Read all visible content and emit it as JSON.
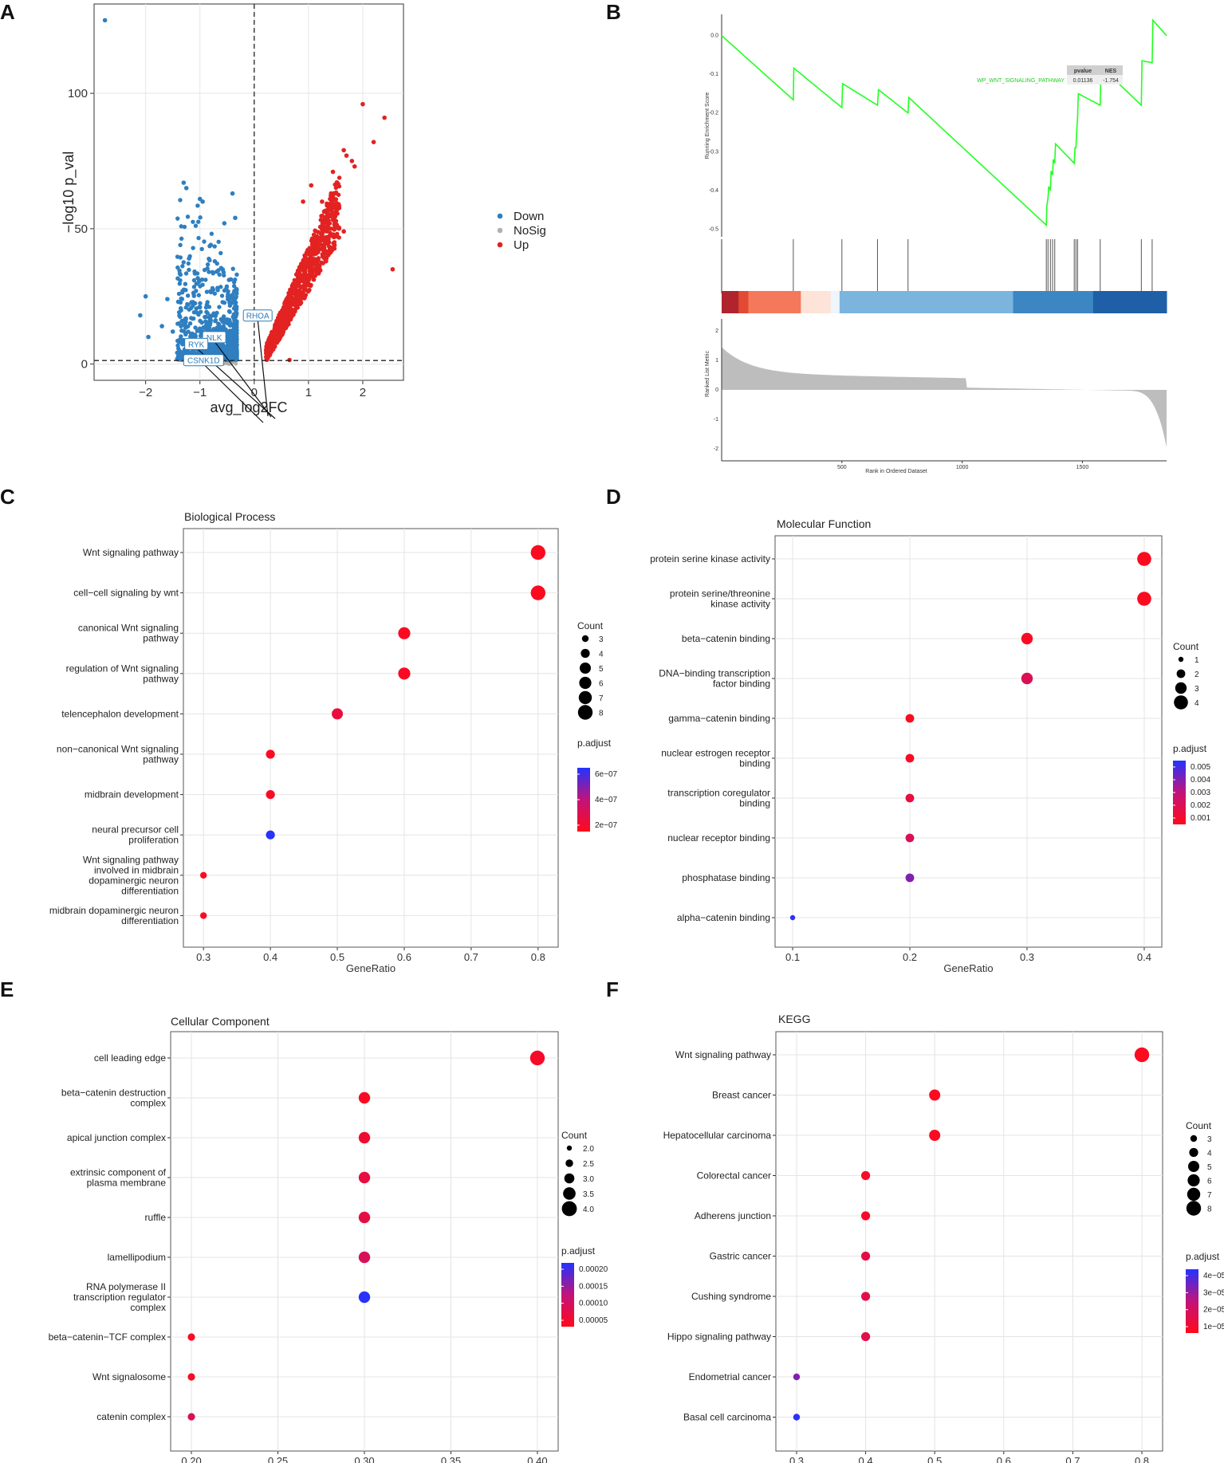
{
  "panels": {
    "A": {
      "letter": "A",
      "chart_data": {
        "type": "scatter",
        "title": "",
        "xlabel": "avg_log2FC",
        "ylabel": "−log10 p_val",
        "xlim": [
          -2.95,
          2.75
        ],
        "ylim": [
          -6,
          133
        ],
        "xticks": [
          -2,
          -1,
          0,
          1,
          2
        ],
        "yticks": [
          0,
          50,
          100
        ],
        "legend": [
          {
            "label": "Down",
            "color": "#2f7fc0"
          },
          {
            "label": "NoSig",
            "color": "#b0b0b0"
          },
          {
            "label": "Up",
            "color": "#e32222"
          }
        ],
        "thresholds": {
          "x": 0,
          "y": 1.3
        },
        "highlight_genes": [
          "RHOA",
          "NLK",
          "RYK",
          "CSNK1D"
        ],
        "outliers_down": [
          [
            -2.75,
            127
          ],
          [
            -1.3,
            67
          ],
          [
            -1.25,
            65
          ],
          [
            -1.0,
            61
          ],
          [
            -0.95,
            60
          ],
          [
            -0.4,
            63
          ],
          [
            -2.0,
            25
          ],
          [
            -2.1,
            18
          ],
          [
            -1.95,
            10
          ],
          [
            -1.6,
            24
          ],
          [
            -1.7,
            14
          ],
          [
            -1.5,
            12
          ],
          [
            -1.2,
            39
          ],
          [
            -1.4,
            23
          ],
          [
            -1.0,
            21
          ],
          [
            -0.8,
            44
          ],
          [
            -0.55,
            52
          ],
          [
            -0.35,
            54
          ]
        ],
        "outliers_up": [
          [
            2.0,
            96
          ],
          [
            2.4,
            91
          ],
          [
            2.2,
            82
          ],
          [
            1.65,
            79
          ],
          [
            1.7,
            77
          ],
          [
            1.85,
            73
          ],
          [
            1.8,
            75
          ],
          [
            2.55,
            35
          ],
          [
            1.65,
            49
          ],
          [
            1.25,
            60
          ],
          [
            0.9,
            60
          ],
          [
            1.05,
            66
          ],
          [
            1.45,
            71
          ],
          [
            0.65,
            1.5
          ]
        ]
      }
    },
    "B": {
      "letter": "B",
      "chart_data": {
        "type": "line",
        "title": "",
        "xlabel": "Rank in Ordered Dataset",
        "ylabel_top": "Running Enrichment Score",
        "ylabel_bottom": "Ranked List Metric",
        "pathway": "WP_WNT_SIGNALING_PATHWAY",
        "pvalue_label": "pvalue",
        "nes_label": "NES",
        "pvalue": "0.01136",
        "nes": "-1.754",
        "es_yticks": [
          "0.0",
          "-0.1",
          "-0.2",
          "-0.3",
          "-0.4",
          "-0.5"
        ],
        "metric_yticks": [
          "2",
          "1",
          "0",
          "-1",
          "-2"
        ],
        "xticks": [
          "500",
          "1000",
          "1500"
        ],
        "x_max": 1850,
        "hit_ranks": [
          298,
          500,
          648,
          775,
          1350,
          1357,
          1367,
          1376,
          1385,
          1466,
          1473,
          1480,
          1574,
          1745,
          1790
        ],
        "es_points": [
          [
            0,
            0.0
          ],
          [
            298,
            -0.166
          ],
          [
            300,
            -0.084
          ],
          [
            500,
            -0.186
          ],
          [
            503,
            -0.124
          ],
          [
            648,
            -0.18
          ],
          [
            652,
            -0.14
          ],
          [
            775,
            -0.2
          ],
          [
            778,
            -0.16
          ],
          [
            1350,
            -0.49
          ],
          [
            1352,
            -0.44
          ],
          [
            1357,
            -0.42
          ],
          [
            1360,
            -0.39
          ],
          [
            1367,
            -0.4
          ],
          [
            1370,
            -0.35
          ],
          [
            1376,
            -0.36
          ],
          [
            1379,
            -0.32
          ],
          [
            1385,
            -0.33
          ],
          [
            1388,
            -0.28
          ],
          [
            1466,
            -0.33
          ],
          [
            1469,
            -0.29
          ],
          [
            1473,
            -0.29
          ],
          [
            1476,
            -0.25
          ],
          [
            1480,
            -0.21
          ],
          [
            1483,
            -0.15
          ],
          [
            1574,
            -0.18
          ],
          [
            1577,
            -0.08
          ],
          [
            1745,
            -0.18
          ],
          [
            1748,
            -0.065
          ],
          [
            1790,
            -0.07
          ],
          [
            1793,
            0.04
          ],
          [
            1850,
            0.0
          ]
        ]
      }
    },
    "C": {
      "letter": "C",
      "chart_data": {
        "type": "scatter",
        "title": "Biological Process",
        "xlabel": "GeneRatio",
        "xlim": [
          0.27,
          0.83
        ],
        "xticks": [
          "0.3",
          "0.4",
          "0.5",
          "0.6",
          "0.7",
          "0.8"
        ],
        "categories": [
          "Wnt signaling pathway",
          "cell−cell signaling by wnt",
          "canonical Wnt signaling\npathway",
          "regulation of Wnt signaling\npathway",
          "telencephalon development",
          "non−canonical Wnt signaling\npathway",
          "midbrain development",
          "neural precursor cell\nproliferation",
          "Wnt signaling pathway\ninvolved in midbrain\ndopaminergic neuron\ndifferentiation",
          "midbrain dopaminergic neuron\ndifferentiation"
        ],
        "gene_ratio": [
          0.8,
          0.8,
          0.6,
          0.6,
          0.5,
          0.4,
          0.4,
          0.4,
          0.3,
          0.3
        ],
        "count": [
          8,
          8,
          6,
          6,
          5,
          4,
          4,
          4,
          3,
          3
        ],
        "p_adjust_frac": [
          0.03,
          0.03,
          0.03,
          0.05,
          0.18,
          0.05,
          0.05,
          0.98,
          0.03,
          0.03
        ],
        "size_legend_title": "Count",
        "size_legend": [
          "3",
          "4",
          "5",
          "6",
          "7",
          "8"
        ],
        "color_legend_title": "p.adjust",
        "color_legend": [
          "6e−07",
          "4e−07",
          "2e−07"
        ]
      }
    },
    "D": {
      "letter": "D",
      "chart_data": {
        "type": "scatter",
        "title": "Molecular Function",
        "xlabel": "GeneRatio",
        "xlim": [
          0.085,
          0.415
        ],
        "xticks": [
          "0.1",
          "0.2",
          "0.3",
          "0.4"
        ],
        "categories": [
          "protein serine kinase activity",
          "protein serine/threonine\nkinase activity",
          "beta−catenin binding",
          "DNA−binding transcription\nfactor binding",
          "gamma−catenin binding",
          "nuclear estrogen receptor\nbinding",
          "transcription coregulator\nbinding",
          "nuclear receptor binding",
          "phosphatase binding",
          "alpha−catenin binding"
        ],
        "gene_ratio": [
          0.4,
          0.4,
          0.3,
          0.3,
          0.2,
          0.2,
          0.2,
          0.2,
          0.2,
          0.1
        ],
        "count": [
          4,
          4,
          3,
          3,
          2,
          2,
          2,
          2,
          2,
          1
        ],
        "p_adjust_frac": [
          0.03,
          0.03,
          0.05,
          0.3,
          0.03,
          0.05,
          0.2,
          0.32,
          0.7,
          0.97
        ],
        "size_legend_title": "Count",
        "size_legend": [
          "1",
          "2",
          "3",
          "4"
        ],
        "color_legend_title": "p.adjust",
        "color_legend": [
          "0.005",
          "0.004",
          "0.003",
          "0.002",
          "0.001"
        ]
      }
    },
    "E": {
      "letter": "E",
      "chart_data": {
        "type": "scatter",
        "title": "Cellular Component",
        "xlabel": "GeneRatio",
        "xlim": [
          0.188,
          0.412
        ],
        "xticks": [
          "0.20",
          "0.25",
          "0.30",
          "0.35",
          "0.40"
        ],
        "categories": [
          "cell leading edge",
          "beta−catenin destruction\ncomplex",
          "apical junction complex",
          "extrinsic component of\nplasma membrane",
          "ruffle",
          "lamellipodium",
          "RNA polymerase II\ntranscription regulator\ncomplex",
          "beta−catenin−TCF complex",
          "Wnt signalosome",
          "catenin complex"
        ],
        "gene_ratio": [
          0.4,
          0.3,
          0.3,
          0.3,
          0.3,
          0.3,
          0.3,
          0.2,
          0.2,
          0.2
        ],
        "count": [
          4,
          3,
          3,
          3,
          3,
          3,
          3,
          2,
          2,
          2
        ],
        "p_adjust_frac": [
          0.08,
          0.04,
          0.12,
          0.2,
          0.22,
          0.32,
          0.98,
          0.04,
          0.06,
          0.3
        ],
        "size_legend_title": "Count",
        "size_legend": [
          "2.0",
          "2.5",
          "3.0",
          "3.5",
          "4.0"
        ],
        "color_legend_title": "p.adjust",
        "color_legend": [
          "0.00020",
          "0.00015",
          "0.00010",
          "0.00005"
        ]
      }
    },
    "F": {
      "letter": "F",
      "chart_data": {
        "type": "scatter",
        "title": "KEGG",
        "xlabel": "GeneRatio",
        "xlim": [
          0.27,
          0.83
        ],
        "xticks": [
          "0.3",
          "0.4",
          "0.5",
          "0.6",
          "0.7",
          "0.8"
        ],
        "categories": [
          "Wnt signaling pathway",
          "Breast cancer",
          "Hepatocellular carcinoma",
          "Colorectal cancer",
          "Adherens junction",
          "Gastric cancer",
          "Cushing syndrome",
          "Hippo signaling pathway",
          "Endometrial cancer",
          "Basal cell carcinoma"
        ],
        "gene_ratio": [
          0.8,
          0.5,
          0.5,
          0.4,
          0.4,
          0.4,
          0.4,
          0.4,
          0.3,
          0.3
        ],
        "count": [
          8,
          5,
          5,
          4,
          4,
          4,
          4,
          4,
          3,
          3
        ],
        "p_adjust_frac": [
          0.03,
          0.04,
          0.04,
          0.06,
          0.08,
          0.22,
          0.24,
          0.25,
          0.7,
          0.97
        ],
        "size_legend_title": "Count",
        "size_legend": [
          "3",
          "4",
          "5",
          "6",
          "7",
          "8"
        ],
        "color_legend_title": "p.adjust",
        "color_legend": [
          "4e−05",
          "3e−05",
          "2e−05",
          "1e−05"
        ]
      }
    }
  }
}
